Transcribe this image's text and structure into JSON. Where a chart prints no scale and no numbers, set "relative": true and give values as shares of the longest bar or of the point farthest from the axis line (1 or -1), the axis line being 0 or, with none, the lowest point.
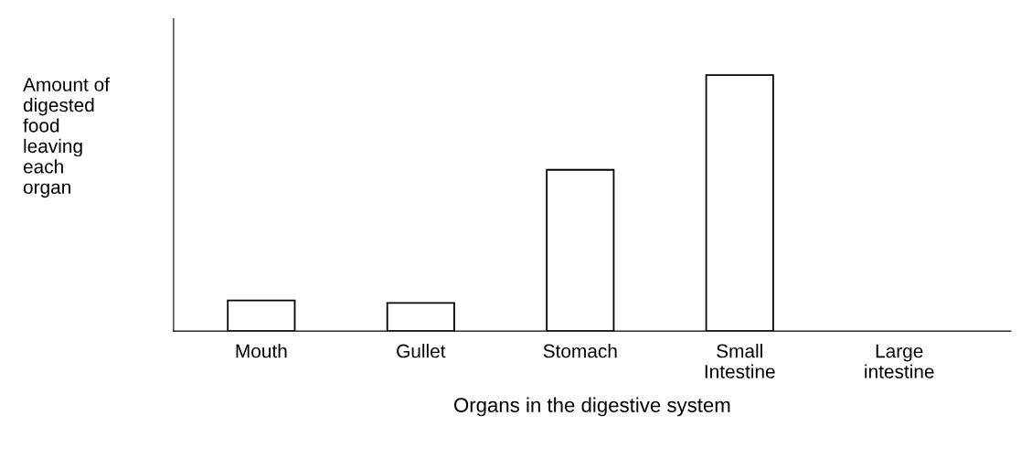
{
  "chart_data": {
    "type": "bar",
    "relative": true,
    "categories": [
      "Mouth",
      "Gullet",
      "Stomach",
      "Small\nIntestine",
      "Large\nintestine"
    ],
    "values": [
      0.12,
      0.11,
      0.63,
      1,
      0
    ],
    "color": "#ffffff",
    "xlabel": "Organs in the digestive system",
    "ylabel": "Amount of\ndigested\nfood\nleaving\neach\norgan",
    "grid": false,
    "legend": false
  }
}
